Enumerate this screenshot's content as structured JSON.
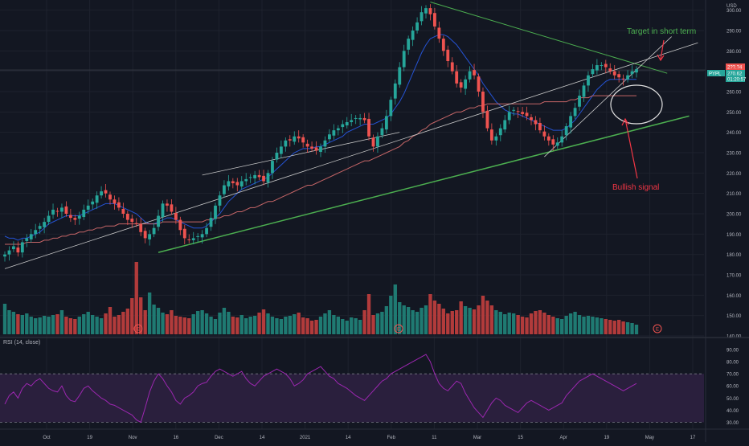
{
  "colors": {
    "background": "#131722",
    "grid": "#1e222d",
    "up": "#26a69a",
    "down": "#ef5350",
    "volume_up": "#1f7a72",
    "volume_down": "#b23b3b",
    "rsi_line": "#9c27b0",
    "rsi_band": "#2a1f3d",
    "trend_green": "#4caf50",
    "trend_white": "#c8c8c8",
    "ma_blue": "#2962ff",
    "ma_red": "#e57373",
    "annotation_green": "#4caf50",
    "annotation_red": "#f23645",
    "circle": "#e0e0e0"
  },
  "header": {
    "currency": "USD"
  },
  "price_badge": {
    "ticker": "PYPL",
    "top_value": "2??.?4",
    "price": "270.62",
    "countdown": "01:20:57"
  },
  "annotations": {
    "target": "Target in short term",
    "bullish": "Bullish signal"
  },
  "rsi_panel": {
    "label": "RSI (14, close)"
  },
  "event_markers": [
    "E",
    "E",
    "E"
  ],
  "chart_data": [
    {
      "type": "candlestick",
      "title": "",
      "ylabel": "USD",
      "ylim": [
        140,
        305
      ],
      "y_ticks": [
        140,
        150,
        160,
        170,
        180,
        190,
        200,
        210,
        220,
        230,
        240,
        250,
        260,
        270,
        280,
        290,
        300
      ],
      "y_tick_labels": [
        "140.00",
        "150.00",
        "160.00",
        "170.00",
        "180.00",
        "190.00",
        "200.00",
        "210.00",
        "220.00",
        "230.00",
        "240.00",
        "250.00",
        "260.00",
        "270.00",
        "280.00",
        "290.00",
        "300.00"
      ],
      "x_tick_labels": [
        "Oct",
        "19",
        "Nov",
        "16",
        "Dec",
        "14",
        "2021",
        "14",
        "Feb",
        "11",
        "Mar",
        "15",
        "Apr",
        "19",
        "May",
        "17"
      ],
      "close_series": [
        180,
        182,
        184,
        181,
        186,
        188,
        190,
        192,
        194,
        196,
        199,
        202,
        201,
        203,
        200,
        198,
        197,
        199,
        202,
        204,
        206,
        209,
        211,
        210,
        207,
        205,
        203,
        200,
        197,
        196,
        195,
        191,
        188,
        190,
        193,
        199,
        205,
        204,
        201,
        197,
        192,
        188,
        187,
        188,
        189,
        190,
        193,
        198,
        204,
        209,
        214,
        216,
        215,
        214,
        216,
        217,
        218,
        219,
        218,
        216,
        220,
        226,
        230,
        233,
        236,
        236,
        238,
        237,
        235,
        233,
        232,
        231,
        233,
        236,
        239,
        241,
        242,
        244,
        245,
        246,
        247,
        247,
        246,
        238,
        233,
        238,
        242,
        248,
        256,
        264,
        272,
        280,
        286,
        290,
        294,
        299,
        301,
        298,
        292,
        286,
        280,
        275,
        270,
        264,
        262,
        266,
        270,
        268,
        260,
        250,
        242,
        236,
        238,
        242,
        246,
        250,
        251,
        250,
        249,
        248,
        246,
        244,
        241,
        238,
        236,
        234,
        235,
        238,
        243,
        248,
        252,
        258,
        263,
        268,
        271,
        273,
        273,
        272,
        270,
        268,
        267,
        266,
        268,
        270,
        271
      ],
      "volume_series": [
        38,
        30,
        28,
        25,
        24,
        26,
        22,
        20,
        21,
        23,
        22,
        24,
        25,
        30,
        22,
        20,
        19,
        22,
        25,
        28,
        24,
        22,
        20,
        26,
        34,
        22,
        24,
        28,
        32,
        45,
        90,
        46,
        30,
        52,
        37,
        33,
        27,
        25,
        30,
        23,
        22,
        21,
        20,
        25,
        29,
        30,
        26,
        22,
        19,
        27,
        33,
        28,
        22,
        21,
        24,
        20,
        22,
        23,
        27,
        31,
        26,
        22,
        20,
        19,
        22,
        23,
        25,
        27,
        21,
        20,
        17,
        18,
        22,
        26,
        30,
        24,
        22,
        19,
        17,
        21,
        20,
        18,
        30,
        50,
        24,
        26,
        28,
        35,
        48,
        62,
        40,
        36,
        34,
        30,
        28,
        33,
        36,
        50,
        42,
        38,
        32,
        26,
        29,
        30,
        41,
        35,
        33,
        31,
        36,
        48,
        42,
        36,
        30,
        28,
        25,
        27,
        26,
        24,
        22,
        21,
        26,
        29,
        30,
        27,
        24,
        22,
        20,
        19,
        23,
        26,
        28,
        24,
        22,
        23,
        22,
        21,
        20,
        19,
        18,
        17,
        18,
        16,
        15,
        14,
        12
      ],
      "ma_short_series": [
        189,
        188,
        188,
        187,
        188,
        188,
        189,
        190,
        191,
        193,
        195,
        196,
        197,
        198,
        199,
        199,
        199,
        199,
        200,
        201,
        202,
        203,
        204,
        205,
        205,
        205,
        204,
        203,
        202,
        201,
        200,
        198,
        196,
        195,
        195,
        196,
        197,
        198,
        198,
        197,
        196,
        195,
        194,
        193,
        193,
        193,
        194,
        196,
        198,
        200,
        203,
        206,
        208,
        210,
        212,
        213,
        214,
        215,
        216,
        217,
        218,
        220,
        222,
        224,
        226,
        228,
        230,
        231,
        232,
        232,
        232,
        233,
        233,
        234,
        235,
        236,
        237,
        238,
        240,
        241,
        242,
        243,
        244,
        244,
        244,
        245,
        246,
        247,
        249,
        252,
        255,
        259,
        264,
        269,
        274,
        279,
        283,
        286,
        287,
        288,
        288,
        287,
        285,
        283,
        280,
        277,
        274,
        271,
        268,
        264,
        261,
        258,
        255,
        253,
        251,
        250,
        249,
        249,
        248,
        247,
        246,
        245,
        244,
        243,
        242,
        241,
        241,
        241,
        242,
        244,
        246,
        249,
        252,
        255,
        258,
        261,
        263,
        265,
        266,
        266,
        266,
        266,
        266,
        266,
        266
      ],
      "ma_long_series": [
        185,
        185,
        185,
        185,
        185,
        186,
        186,
        186,
        186,
        187,
        187,
        188,
        188,
        189,
        189,
        190,
        190,
        191,
        191,
        192,
        192,
        193,
        193,
        194,
        194,
        194,
        195,
        195,
        195,
        195,
        195,
        195,
        195,
        195,
        195,
        195,
        196,
        196,
        196,
        196,
        196,
        196,
        196,
        196,
        196,
        196,
        197,
        197,
        198,
        198,
        199,
        199,
        200,
        201,
        201,
        202,
        203,
        203,
        204,
        205,
        206,
        206,
        207,
        208,
        209,
        210,
        211,
        212,
        213,
        214,
        214,
        215,
        216,
        217,
        218,
        219,
        220,
        221,
        222,
        223,
        224,
        225,
        226,
        226,
        227,
        228,
        229,
        230,
        231,
        232,
        233,
        235,
        236,
        238,
        239,
        241,
        242,
        244,
        245,
        246,
        247,
        248,
        249,
        250,
        250,
        251,
        252,
        252,
        253,
        253,
        254,
        254,
        254,
        254,
        254,
        254,
        254,
        254,
        254,
        254,
        254,
        254,
        254,
        255,
        255,
        255,
        255,
        255,
        255,
        256,
        256,
        257,
        257,
        257,
        258,
        258,
        258,
        258,
        258,
        258,
        258,
        258,
        258,
        258,
        258
      ],
      "rsi_series": [
        45,
        52,
        55,
        50,
        58,
        62,
        60,
        64,
        66,
        62,
        58,
        56,
        55,
        60,
        52,
        48,
        47,
        52,
        58,
        60,
        56,
        53,
        50,
        48,
        45,
        44,
        42,
        40,
        38,
        36,
        32,
        30,
        42,
        55,
        64,
        70,
        66,
        60,
        55,
        48,
        45,
        50,
        52,
        55,
        60,
        62,
        63,
        68,
        72,
        74,
        72,
        70,
        68,
        70,
        72,
        66,
        62,
        60,
        64,
        68,
        70,
        72,
        74,
        72,
        70,
        66,
        60,
        62,
        65,
        70,
        72,
        74,
        76,
        72,
        68,
        66,
        62,
        60,
        58,
        55,
        52,
        50,
        48,
        52,
        56,
        60,
        64,
        66,
        70,
        72,
        74,
        76,
        78,
        80,
        82,
        84,
        86,
        80,
        70,
        62,
        58,
        56,
        60,
        64,
        62,
        54,
        48,
        42,
        38,
        34,
        40,
        46,
        50,
        48,
        44,
        42,
        40,
        38,
        42,
        46,
        48,
        46,
        44,
        42,
        40,
        42,
        44,
        46,
        52,
        56,
        60,
        64,
        66,
        68,
        70,
        68,
        66,
        64,
        62,
        60,
        58,
        56,
        58,
        60,
        62
      ],
      "rsi_ylim": [
        27,
        92
      ],
      "rsi_ticks": [
        30,
        40,
        50,
        60,
        70,
        80,
        90
      ],
      "rsi_tick_labels": [
        "30.00",
        "40.00",
        "50.00",
        "60.00",
        "70.00",
        "80.00",
        "90.00"
      ],
      "rsi_bands": [
        30,
        70
      ],
      "grid": true,
      "legend": "none"
    }
  ]
}
